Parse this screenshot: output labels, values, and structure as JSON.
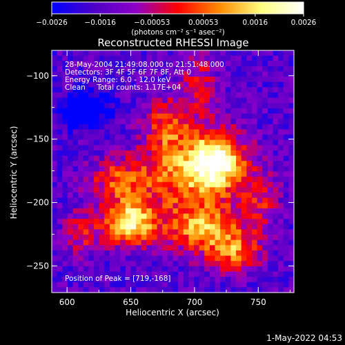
{
  "chart_data": {
    "type": "heatmap",
    "title": "Reconstructed RHESSI Image",
    "xlabel": "Heliocentric X (arcsec)",
    "ylabel": "Heliocentric Y (arcsec)",
    "xlim": [
      588,
      778
    ],
    "ylim": [
      -271,
      -80
    ],
    "x_ticks": [
      600,
      650,
      700,
      750
    ],
    "y_ticks": [
      -250,
      -200,
      -150,
      -100
    ],
    "x_tick_labels": [
      "600",
      "650",
      "700",
      "750"
    ],
    "y_tick_labels": [
      "−250",
      "−200",
      "−150",
      "−100"
    ],
    "colorbar": {
      "min": -0.0026,
      "max": 0.0026,
      "ticks": [
        -0.0026,
        -0.0016,
        -0.00053,
        0.00053,
        0.0016,
        0.0026
      ],
      "tick_labels": [
        "−0.0026",
        "−0.0016",
        "−0.00053",
        "0.00053",
        "0.0016",
        "0.0026"
      ],
      "unit": "(photons cm⁻² s⁻¹ asec⁻²)",
      "colormap": [
        "#0000ff",
        "#4d00c8",
        "#8c00c8",
        "#ff0000",
        "#ff8c00",
        "#ffff80",
        "#ffffff"
      ]
    },
    "annotations": [
      "28-May-2004 21:49:08.000 to 21:51:48.000",
      "Detectors: 3F 4F 5F 6F 7F 8F, Att 0",
      "Energy Range: 6.0 - 12.0 keV",
      "Clean     Total counts: 1.17E+04"
    ],
    "peak_label": "Position of Peak = [719,-168]",
    "peak": [
      719,
      -168
    ],
    "sources": [
      {
        "x": 719,
        "y": -168,
        "sx": 16,
        "sy": 16,
        "amp": 1.0
      },
      {
        "x": 650,
        "y": -218,
        "sx": 14,
        "sy": 12,
        "amp": 0.95
      },
      {
        "x": 710,
        "y": -222,
        "sx": 22,
        "sy": 14,
        "amp": 0.7
      },
      {
        "x": 690,
        "y": -180,
        "sx": 28,
        "sy": 20,
        "amp": 0.55
      },
      {
        "x": 735,
        "y": -242,
        "sx": 14,
        "sy": 10,
        "amp": 0.55
      },
      {
        "x": 680,
        "y": -140,
        "sx": 12,
        "sy": 16,
        "amp": 0.5
      },
      {
        "x": 640,
        "y": -185,
        "sx": 16,
        "sy": 12,
        "amp": 0.45
      },
      {
        "x": 612,
        "y": -225,
        "sx": 10,
        "sy": 12,
        "amp": 0.4
      },
      {
        "x": 705,
        "y": -110,
        "sx": 10,
        "sy": 18,
        "amp": 0.4
      },
      {
        "x": 755,
        "y": -200,
        "sx": 10,
        "sy": 18,
        "amp": 0.35
      },
      {
        "x": 615,
        "y": -127,
        "sx": 12,
        "sy": 10,
        "amp": -0.55
      }
    ]
  },
  "footer": {
    "timestamp": "1-May-2022 04:53"
  }
}
